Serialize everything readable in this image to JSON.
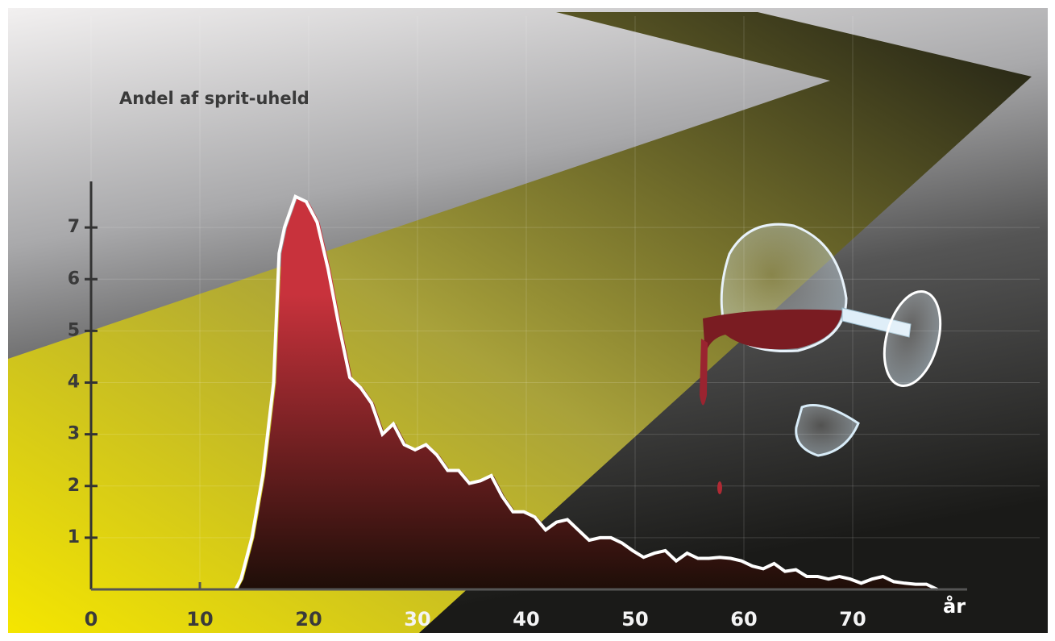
{
  "chart_data": {
    "type": "area",
    "title": "Andel af sprit-uheld",
    "x_label": "år",
    "x": [
      13.5,
      14,
      15,
      16,
      17,
      17.5,
      18,
      19,
      20,
      21,
      22,
      23,
      24,
      25,
      26,
      27,
      28,
      29,
      30,
      31,
      32,
      33,
      34,
      35,
      36,
      37,
      38,
      39,
      40,
      41,
      42,
      43,
      44,
      45,
      46,
      47,
      48,
      49,
      50,
      51,
      52,
      53,
      54,
      55,
      56,
      57,
      58,
      59,
      60,
      61,
      62,
      63,
      64,
      65,
      66,
      67,
      68,
      69,
      70,
      71,
      72,
      73,
      74,
      75,
      76,
      77,
      78
    ],
    "series": [
      {
        "color": "#c8323c",
        "values": [
          0,
          0.2,
          1,
          2.2,
          4,
          6.5,
          7,
          7.6,
          7.5,
          7.1,
          6.2,
          5.1,
          4.1,
          3.9,
          3.6,
          3.0,
          3.2,
          2.8,
          2.7,
          2.8,
          2.6,
          2.3,
          2.3,
          2.05,
          2.1,
          2.2,
          1.8,
          1.5,
          1.5,
          1.4,
          1.15,
          1.3,
          1.35,
          1.15,
          0.95,
          1.0,
          1.0,
          0.9,
          0.75,
          0.62,
          0.7,
          0.75,
          0.55,
          0.7,
          0.6,
          0.6,
          0.62,
          0.6,
          0.55,
          0.45,
          0.4,
          0.5,
          0.35,
          0.38,
          0.25,
          0.25,
          0.2,
          0.25,
          0.2,
          0.12,
          0.2,
          0.25,
          0.15,
          0.12,
          0.1,
          0.1,
          0
        ]
      }
    ],
    "xlim": [
      0,
      80
    ],
    "xticks": [
      0,
      10,
      20,
      30,
      40,
      50,
      60,
      70
    ],
    "ylim": [
      0,
      8
    ],
    "yticks": [
      1,
      2,
      3,
      4,
      5,
      6,
      7
    ],
    "grid": true
  }
}
